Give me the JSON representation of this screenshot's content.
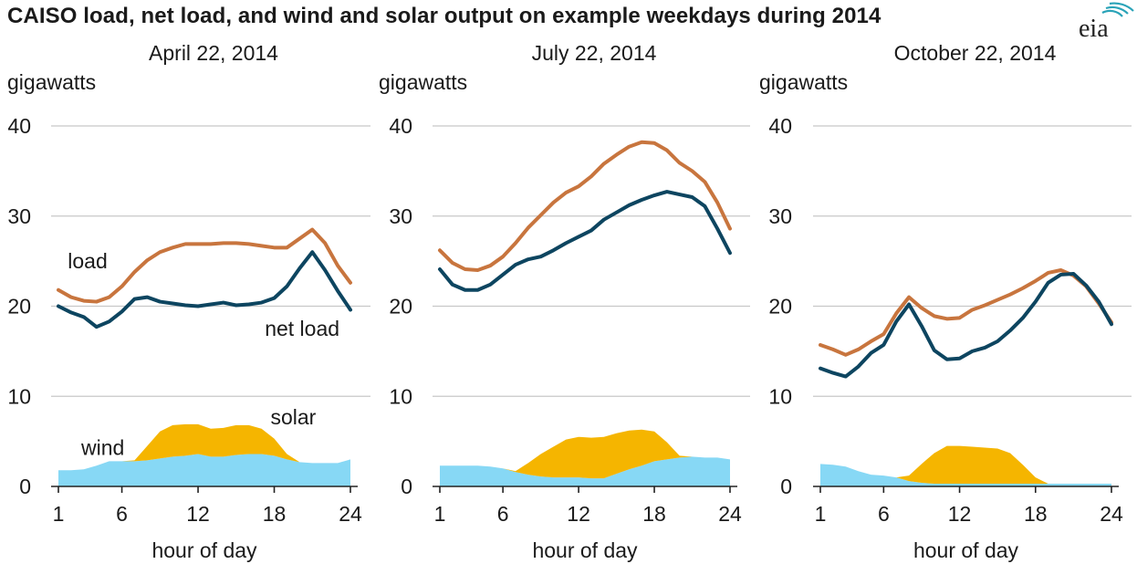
{
  "title": "CAISO load, net load, and wind and solar output on example weekdays during 2014",
  "logo_text": "eia",
  "colors": {
    "load": "#c8753e",
    "net_load": "#0d4560",
    "wind": "#87d8f5",
    "solar": "#f5b500",
    "grid": "#c8c8c8",
    "text": "#1a1a1a",
    "logo": "#222222",
    "logo_arcs": "#2aa3b8"
  },
  "chart_data": [
    {
      "type": "area",
      "title": "April 22, 2014",
      "ylabel": "gigawatts",
      "xlabel": "hour of day",
      "ylim": [
        0,
        40
      ],
      "yticks": [
        0,
        10,
        20,
        30,
        40
      ],
      "xlim": [
        1,
        24
      ],
      "xticks": [
        1,
        6,
        12,
        18,
        24
      ],
      "grid": true,
      "x": [
        1,
        2,
        3,
        4,
        5,
        6,
        7,
        8,
        9,
        10,
        11,
        12,
        13,
        14,
        15,
        16,
        17,
        18,
        19,
        20,
        21,
        22,
        23,
        24
      ],
      "series": [
        {
          "name": "load",
          "kind": "line",
          "values": [
            21.8,
            21.0,
            20.6,
            20.5,
            21.0,
            22.2,
            23.8,
            25.1,
            26.0,
            26.5,
            26.9,
            26.9,
            26.9,
            27.0,
            27.0,
            26.9,
            26.7,
            26.5,
            26.5,
            27.5,
            28.5,
            27.0,
            24.5,
            22.6
          ]
        },
        {
          "name": "net load",
          "kind": "line",
          "values": [
            20.0,
            19.3,
            18.8,
            17.7,
            18.3,
            19.4,
            20.8,
            21.0,
            20.5,
            20.3,
            20.1,
            20.0,
            20.2,
            20.4,
            20.1,
            20.2,
            20.4,
            20.9,
            22.2,
            24.2,
            26.0,
            24.0,
            21.7,
            19.6
          ]
        },
        {
          "name": "wind",
          "kind": "area",
          "values": [
            1.8,
            1.8,
            1.9,
            2.3,
            2.8,
            2.8,
            2.8,
            2.9,
            3.1,
            3.3,
            3.4,
            3.6,
            3.3,
            3.3,
            3.5,
            3.6,
            3.6,
            3.4,
            3.0,
            2.7,
            2.6,
            2.6,
            2.6,
            3.0
          ]
        },
        {
          "name": "solar",
          "kind": "area",
          "values": [
            0,
            0,
            0,
            0,
            0,
            0,
            0.1,
            1.6,
            3.0,
            3.5,
            3.5,
            3.3,
            3.1,
            3.2,
            3.3,
            3.2,
            2.8,
            1.9,
            0.6,
            0,
            0,
            0,
            0,
            0
          ]
        }
      ],
      "annotations": [
        {
          "text": "load",
          "x": 3.3,
          "y": 24.2,
          "color": "load"
        },
        {
          "text": "net load",
          "x": 20.2,
          "y": 16.7,
          "color": "net_load"
        },
        {
          "text": "solar",
          "x": 19.5,
          "y": 6.9,
          "color": "solar"
        },
        {
          "text": "wind",
          "x": 4.5,
          "y": 3.5,
          "color": "wind"
        }
      ]
    },
    {
      "type": "area",
      "title": "July 22, 2014",
      "ylabel": "gigawatts",
      "xlabel": "hour of day",
      "ylim": [
        0,
        40
      ],
      "yticks": [
        0,
        10,
        20,
        30,
        40
      ],
      "xlim": [
        1,
        24
      ],
      "xticks": [
        1,
        6,
        12,
        18,
        24
      ],
      "grid": true,
      "x": [
        1,
        2,
        3,
        4,
        5,
        6,
        7,
        8,
        9,
        10,
        11,
        12,
        13,
        14,
        15,
        16,
        17,
        18,
        19,
        20,
        21,
        22,
        23,
        24
      ],
      "series": [
        {
          "name": "load",
          "kind": "line",
          "values": [
            26.2,
            24.8,
            24.1,
            24.0,
            24.5,
            25.5,
            27.0,
            28.7,
            30.1,
            31.5,
            32.6,
            33.3,
            34.4,
            35.8,
            36.8,
            37.7,
            38.2,
            38.1,
            37.3,
            35.9,
            35.0,
            33.8,
            31.5,
            28.6
          ]
        },
        {
          "name": "net load",
          "kind": "line",
          "values": [
            24.1,
            22.4,
            21.8,
            21.8,
            22.4,
            23.5,
            24.6,
            25.2,
            25.5,
            26.2,
            27.0,
            27.7,
            28.4,
            29.6,
            30.4,
            31.2,
            31.8,
            32.3,
            32.7,
            32.4,
            32.1,
            31.1,
            28.6,
            25.9
          ]
        },
        {
          "name": "wind",
          "kind": "area",
          "values": [
            2.3,
            2.3,
            2.3,
            2.3,
            2.2,
            2.0,
            1.6,
            1.3,
            1.1,
            1.0,
            1.0,
            1.0,
            0.9,
            0.9,
            1.4,
            1.9,
            2.3,
            2.8,
            3.0,
            3.2,
            3.3,
            3.2,
            3.2,
            3.0
          ]
        },
        {
          "name": "solar",
          "kind": "area",
          "values": [
            0,
            0,
            0,
            0,
            0,
            0,
            0.1,
            1.3,
            2.5,
            3.4,
            4.2,
            4.5,
            4.5,
            4.6,
            4.5,
            4.3,
            4.0,
            3.3,
            1.9,
            0.2,
            0,
            0,
            0,
            0
          ]
        }
      ],
      "annotations": []
    },
    {
      "type": "area",
      "title": "October 22, 2014",
      "ylabel": "gigawatts",
      "xlabel": "hour of day",
      "ylim": [
        0,
        40
      ],
      "yticks": [
        0,
        10,
        20,
        30,
        40
      ],
      "xlim": [
        1,
        24
      ],
      "xticks": [
        1,
        6,
        12,
        18,
        24
      ],
      "grid": true,
      "x": [
        1,
        2,
        3,
        4,
        5,
        6,
        7,
        8,
        9,
        10,
        11,
        12,
        13,
        14,
        15,
        16,
        17,
        18,
        19,
        20,
        21,
        22,
        23,
        24
      ],
      "series": [
        {
          "name": "load",
          "kind": "line",
          "values": [
            15.7,
            15.2,
            14.6,
            15.2,
            16.1,
            16.9,
            19.2,
            21.0,
            19.8,
            18.9,
            18.6,
            18.7,
            19.6,
            20.1,
            20.7,
            21.3,
            22.0,
            22.8,
            23.7,
            24.0,
            23.4,
            22.2,
            20.3,
            18.2
          ]
        },
        {
          "name": "net load",
          "kind": "line",
          "values": [
            13.1,
            12.6,
            12.2,
            13.3,
            14.8,
            15.7,
            18.3,
            20.2,
            17.8,
            15.1,
            14.1,
            14.2,
            15.0,
            15.4,
            16.1,
            17.3,
            18.7,
            20.5,
            22.6,
            23.5,
            23.6,
            22.3,
            20.5,
            18.0
          ]
        },
        {
          "name": "wind",
          "kind": "area",
          "values": [
            2.5,
            2.4,
            2.2,
            1.7,
            1.3,
            1.2,
            1.0,
            0.6,
            0.4,
            0.3,
            0.3,
            0.3,
            0.3,
            0.3,
            0.3,
            0.3,
            0.3,
            0.3,
            0.3,
            0.3,
            0.3,
            0.3,
            0.3,
            0.3
          ]
        },
        {
          "name": "solar",
          "kind": "area",
          "values": [
            0,
            0,
            0,
            0,
            0,
            0,
            0,
            0.6,
            2.1,
            3.4,
            4.2,
            4.2,
            4.1,
            4.0,
            3.9,
            3.4,
            2.1,
            0.7,
            0,
            0,
            0,
            0,
            0,
            0
          ]
        }
      ],
      "annotations": []
    }
  ]
}
